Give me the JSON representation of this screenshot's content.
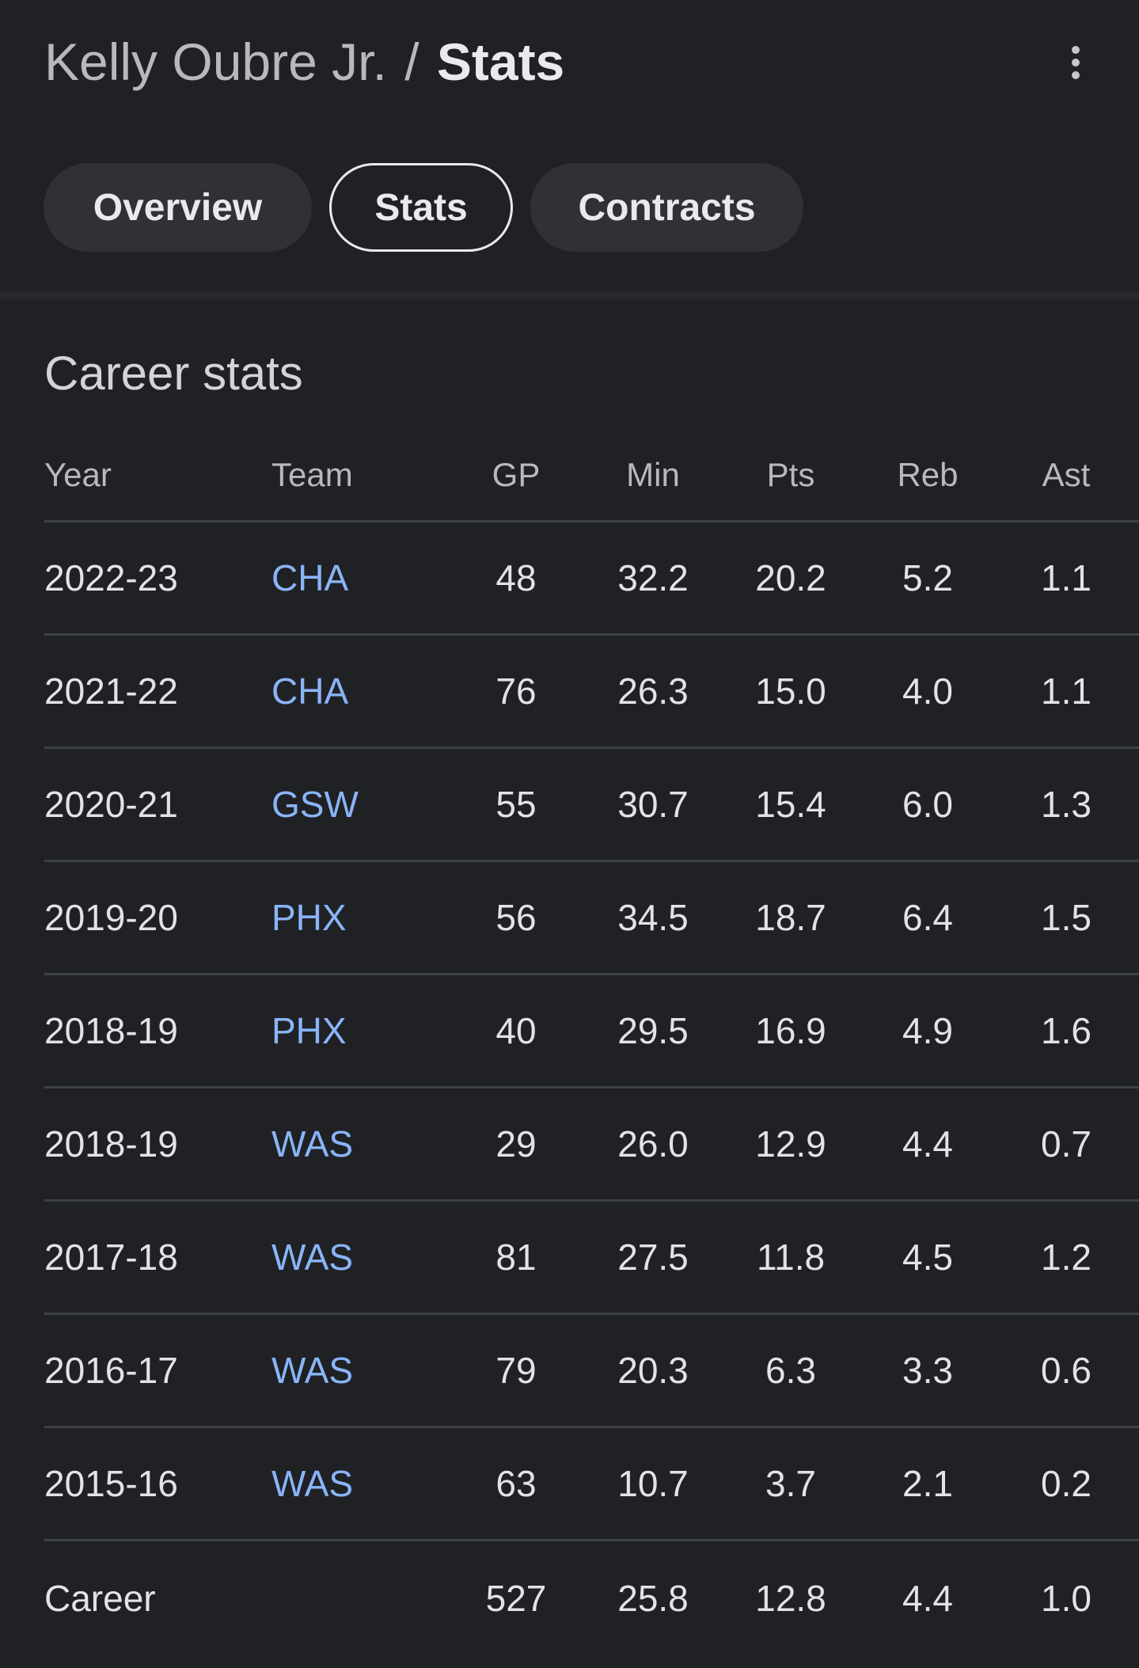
{
  "breadcrumb": {
    "parent": "Kelly Oubre Jr.",
    "separator": "/",
    "current": "Stats"
  },
  "menu": {
    "icon": "more-vert-icon"
  },
  "tabs": [
    {
      "label": "Overview",
      "selected": false
    },
    {
      "label": "Stats",
      "selected": true
    },
    {
      "label": "Contracts",
      "selected": false
    }
  ],
  "section_title": "Career stats",
  "table": {
    "headers": [
      "Year",
      "Team",
      "GP",
      "Min",
      "Pts",
      "Reb",
      "Ast"
    ],
    "rows": [
      [
        "2022-23",
        "CHA",
        "48",
        "32.2",
        "20.2",
        "5.2",
        "1.1"
      ],
      [
        "2021-22",
        "CHA",
        "76",
        "26.3",
        "15.0",
        "4.0",
        "1.1"
      ],
      [
        "2020-21",
        "GSW",
        "55",
        "30.7",
        "15.4",
        "6.0",
        "1.3"
      ],
      [
        "2019-20",
        "PHX",
        "56",
        "34.5",
        "18.7",
        "6.4",
        "1.5"
      ],
      [
        "2018-19",
        "PHX",
        "40",
        "29.5",
        "16.9",
        "4.9",
        "1.6"
      ],
      [
        "2018-19",
        "WAS",
        "29",
        "26.0",
        "12.9",
        "4.4",
        "0.7"
      ],
      [
        "2017-18",
        "WAS",
        "81",
        "27.5",
        "11.8",
        "4.5",
        "1.2"
      ],
      [
        "2016-17",
        "WAS",
        "79",
        "20.3",
        "6.3",
        "3.3",
        "0.6"
      ],
      [
        "2015-16",
        "WAS",
        "63",
        "10.7",
        "3.7",
        "2.1",
        "0.2"
      ]
    ],
    "career": [
      "Career",
      "",
      "527",
      "25.8",
      "12.8",
      "4.4",
      "1.0"
    ]
  },
  "colors": {
    "background": "#202124",
    "link": "#8ab4f8",
    "divider": "#3c4043"
  }
}
